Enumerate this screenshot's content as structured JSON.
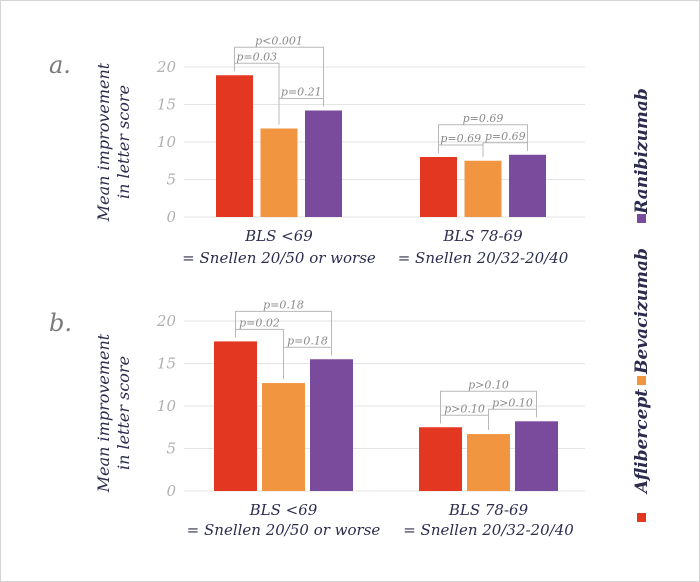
{
  "chart_data": [
    {
      "panel": "a.",
      "type": "bar",
      "ylabel_lines": [
        "Mean improvement",
        "in letter score"
      ],
      "ylim": [
        0,
        20
      ],
      "yticks": [
        0,
        5,
        10,
        15,
        20
      ],
      "grid": true,
      "groups": [
        {
          "label_lines": [
            "BLS <69",
            "= Snellen 20/50 or worse"
          ],
          "values": {
            "Aflibercept": 18.9,
            "Bevacizumab": 11.8,
            "Ranibizumab": 14.2
          },
          "comparisons": [
            {
              "pair": [
                "Aflibercept",
                "Bevacizumab"
              ],
              "label": "p=0.03"
            },
            {
              "pair": [
                "Aflibercept",
                "Ranibizumab"
              ],
              "label": "p<0.001"
            },
            {
              "pair": [
                "Bevacizumab",
                "Ranibizumab"
              ],
              "label": "p=0.21"
            }
          ]
        },
        {
          "label_lines": [
            "BLS 78-69",
            "= Snellen 20/32-20/40"
          ],
          "values": {
            "Aflibercept": 8.0,
            "Bevacizumab": 7.5,
            "Ranibizumab": 8.3
          },
          "comparisons": [
            {
              "pair": [
                "Aflibercept",
                "Bevacizumab"
              ],
              "label": "p=0.69"
            },
            {
              "pair": [
                "Bevacizumab",
                "Ranibizumab"
              ],
              "label": "p=0.69"
            },
            {
              "pair": [
                "Aflibercept",
                "Ranibizumab"
              ],
              "label": "p=0.69"
            }
          ]
        }
      ]
    },
    {
      "panel": "b.",
      "type": "bar",
      "ylabel_lines": [
        "Mean improvement",
        "in letter score"
      ],
      "ylim": [
        0,
        20
      ],
      "yticks": [
        0,
        5,
        10,
        15,
        20
      ],
      "grid": true,
      "groups": [
        {
          "label_lines": [
            "BLS <69",
            "= Snellen 20/50 or worse"
          ],
          "values": {
            "Aflibercept": 17.6,
            "Bevacizumab": 12.7,
            "Ranibizumab": 15.5
          },
          "comparisons": [
            {
              "pair": [
                "Aflibercept",
                "Bevacizumab"
              ],
              "label": "p=0.02"
            },
            {
              "pair": [
                "Bevacizumab",
                "Ranibizumab"
              ],
              "label": "p=0.18"
            },
            {
              "pair": [
                "Aflibercept",
                "Ranibizumab"
              ],
              "label": "p=0.18"
            }
          ]
        },
        {
          "label_lines": [
            "BLS 78-69",
            "= Snellen 20/32-20/40"
          ],
          "values": {
            "Aflibercept": 7.5,
            "Bevacizumab": 6.7,
            "Ranibizumab": 8.2
          },
          "comparisons": [
            {
              "pair": [
                "Aflibercept",
                "Bevacizumab"
              ],
              "label": "p>0.10"
            },
            {
              "pair": [
                "Bevacizumab",
                "Ranibizumab"
              ],
              "label": "p>0.10"
            },
            {
              "pair": [
                "Aflibercept",
                "Ranibizumab"
              ],
              "label": "p>0.10"
            }
          ]
        }
      ]
    }
  ],
  "legend": {
    "placement": "right-vertical",
    "items": [
      {
        "name": "Aflibercept",
        "color": "#e43722"
      },
      {
        "name": "Bevacizumab",
        "color": "#f19541"
      },
      {
        "name": "Ranibizumab",
        "color": "#7a4a9c"
      }
    ]
  }
}
